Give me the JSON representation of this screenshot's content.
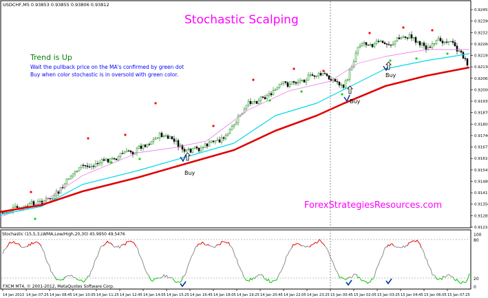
{
  "window": {
    "symbol_info": "USDCHF,M5  0.93853 0.93855 0.93806 0.93812",
    "platform_footer": "FXCM MT4, © 2001-2012, MetaQuotes Software Corp."
  },
  "annotations": {
    "title": "Stochastic Scalping",
    "trend": "Trend is Up",
    "instruction_1": "Wait the pullback price on the MA's confirmed by green dot",
    "instruction_2": "Buy when color stochastic is in oversold with green color.",
    "buy_label": "Buy",
    "watermark": "ForexStrategiesResources.com"
  },
  "stochastic_panel": {
    "label": "Stochastic (15,5,3,LWMA,Low/High,20,30) 45.9950 49.5476",
    "levels": [
      "100",
      "80",
      "20",
      "0"
    ]
  },
  "price_axis": [
    "0.92455",
    "0.92390",
    "0.92325",
    "0.92260",
    "0.92195",
    "0.92130",
    "0.92065",
    "0.92000",
    "0.91935",
    "0.91870",
    "0.91805",
    "0.91740",
    "0.91675",
    "0.91610",
    "0.91545",
    "0.91480",
    "0.91415",
    "0.91350",
    "0.91285",
    "0.91210"
  ],
  "time_axis": [
    "14 Jan 2013",
    "14 Jan 07:25",
    "14 Jan 08:45",
    "14 Jan 10:05",
    "14 Jan 11:25",
    "14 Jan 12:45",
    "14 Jan 14:05",
    "14 Jan 15:25",
    "14 Jan 16:45",
    "14 Jan 18:05",
    "14 Jan 19:25",
    "14 Jan 20:45",
    "14 Jan 22:05",
    "14 Jan 23:25",
    "15 Jan 00:45",
    "15 Jan 02:05",
    "15 Jan 03:25",
    "15 Jan 04:45",
    "15 Jan 06:05",
    "15 Jan 07:25"
  ],
  "colors": {
    "bull_candle": "#008000",
    "bear_candle": "#000000",
    "ma_slow": "#e00000",
    "ma_mid": "#00d8e8",
    "ma_fast": "#ee88ee",
    "stoch_overbought": "#e00000",
    "stoch_oversold": "#00c000",
    "stoch_neutral": "#8a8a8a",
    "title": "#ff00ff",
    "trend_text": "#008000",
    "instructions": "#0000ff",
    "dot_high": "#ff0000",
    "dot_low": "#00dd00"
  },
  "buy_signals": [
    {
      "time_index": 0.37,
      "price": 0.9163
    },
    {
      "time_index": 0.72,
      "price": 0.9202
    },
    {
      "time_index": 0.8,
      "price": 0.923
    }
  ]
}
